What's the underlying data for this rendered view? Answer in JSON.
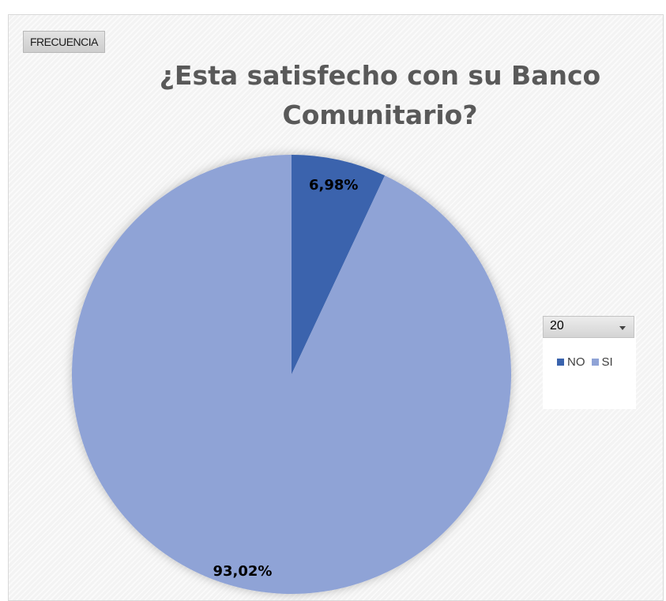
{
  "field_button": {
    "label": "FRECUENCIA"
  },
  "filter": {
    "selected": "20"
  },
  "colors": {
    "no": "#3a63ad",
    "si": "#8fa3d6"
  },
  "chart_data": {
    "type": "pie",
    "title": [
      "¿Esta satisfecho con su Banco",
      "Comunitario?"
    ],
    "categories": [
      "NO",
      "SI"
    ],
    "values": [
      6.98,
      93.02
    ],
    "labels": [
      "6,98%",
      "93,02%"
    ],
    "legend": {
      "position": "right",
      "entries": [
        "NO",
        "SI"
      ]
    }
  }
}
